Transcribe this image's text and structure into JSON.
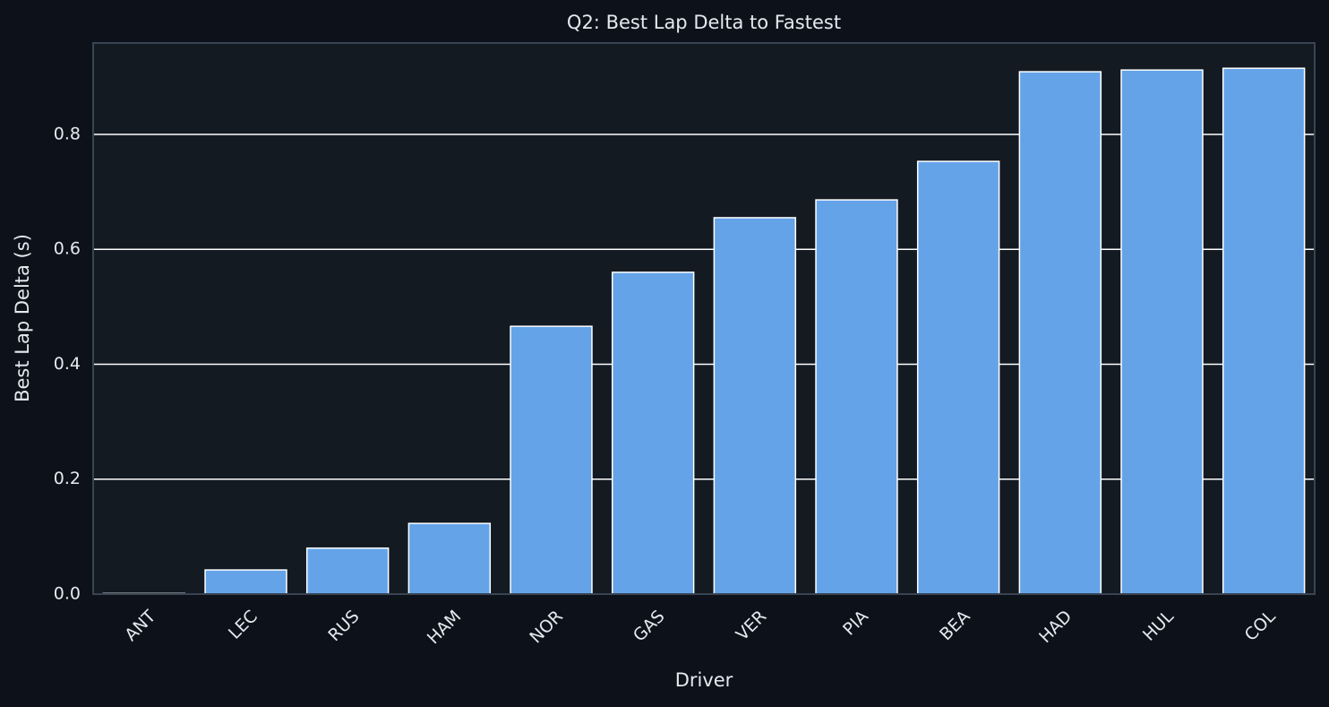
{
  "chart_data": {
    "type": "bar",
    "title": "Q2: Best Lap Delta to Fastest",
    "x_label": "Driver",
    "y_label": "Best Lap Delta (s)",
    "categories": [
      "ANT",
      "LEC",
      "RUS",
      "HAM",
      "NOR",
      "GAS",
      "VER",
      "PIA",
      "BEA",
      "HAD",
      "HUL",
      "COL"
    ],
    "values": [
      0.001,
      0.042,
      0.08,
      0.123,
      0.466,
      0.56,
      0.655,
      0.686,
      0.753,
      0.909,
      0.912,
      0.915
    ],
    "color": "#64a3e8",
    "ylim": [
      0,
      0.959
    ],
    "yticks": [
      {
        "value": 0,
        "label": "0.0"
      },
      {
        "value": 0.2,
        "label": "0.2"
      },
      {
        "value": 0.4,
        "label": "0.4"
      },
      {
        "value": 0.6,
        "label": "0.6"
      },
      {
        "value": 0.8,
        "label": "0.8"
      }
    ],
    "grid": true
  }
}
